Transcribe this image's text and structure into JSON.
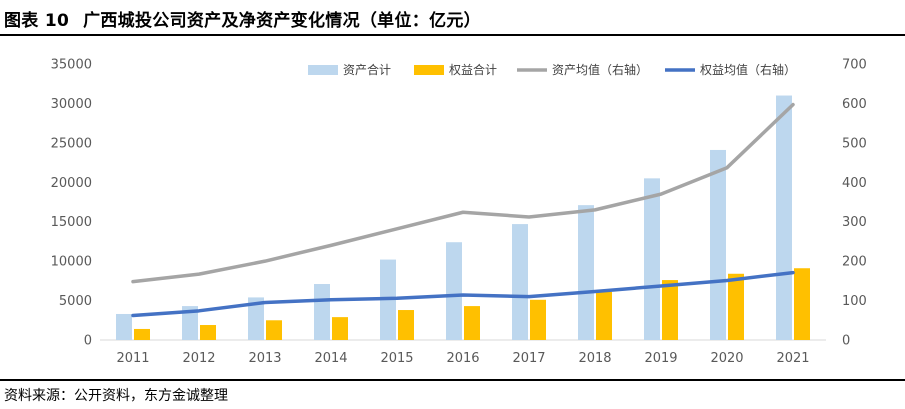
{
  "header": {
    "figure_no": "图表 10",
    "title": "广西城投公司资产及净资产变化情况（单位：亿元）"
  },
  "footer": {
    "source": "资料来源：公开资料，东方金诚整理"
  },
  "chart_data": {
    "type": "bar",
    "categories": [
      "2011",
      "2012",
      "2013",
      "2014",
      "2015",
      "2016",
      "2017",
      "2018",
      "2019",
      "2020",
      "2021"
    ],
    "series": [
      {
        "name": "资产合计",
        "type": "bar",
        "axis": "left",
        "color": "#BDD7EE",
        "values": [
          3300,
          4300,
          5400,
          7100,
          10200,
          12400,
          14700,
          17100,
          20500,
          24100,
          31000
        ]
      },
      {
        "name": "权益合计",
        "type": "bar",
        "axis": "left",
        "color": "#FFC000",
        "values": [
          1400,
          1900,
          2500,
          2900,
          3800,
          4300,
          5100,
          6100,
          7600,
          8400,
          9100
        ]
      },
      {
        "name": "资产均值（右轴）",
        "type": "line",
        "axis": "right",
        "color": "#A5A5A5",
        "values": [
          148,
          167,
          200,
          240,
          282,
          324,
          312,
          330,
          370,
          437,
          597
        ]
      },
      {
        "name": "权益均值（右轴）",
        "type": "line",
        "axis": "right",
        "color": "#4472C4",
        "values": [
          62,
          74,
          95,
          102,
          106,
          114,
          110,
          123,
          137,
          151,
          171
        ]
      }
    ],
    "y_left": {
      "min": 0,
      "max": 35000,
      "step": 5000,
      "ticks": [
        "0",
        "5000",
        "10000",
        "15000",
        "20000",
        "25000",
        "30000",
        "35000"
      ]
    },
    "y_right": {
      "min": 0,
      "max": 700,
      "step": 100,
      "ticks": [
        "0",
        "100",
        "200",
        "300",
        "400",
        "500",
        "600",
        "700"
      ]
    },
    "legend_position": "top-right",
    "grid": false
  }
}
